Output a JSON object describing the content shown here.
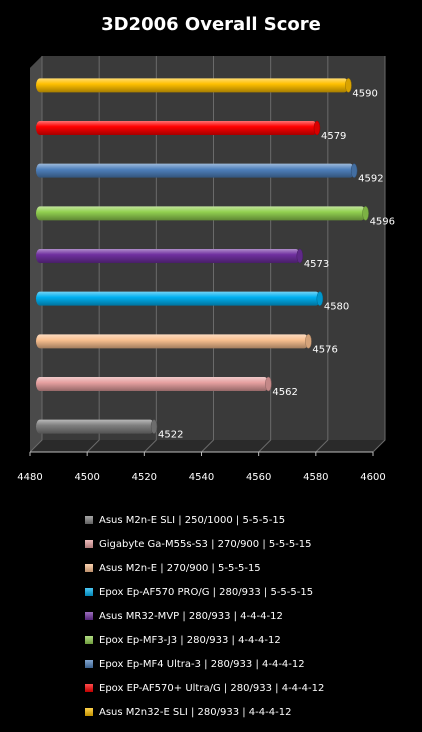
{
  "chart_data": {
    "type": "bar",
    "orientation": "horizontal",
    "title": "3D2006 Overall Score",
    "xlim": [
      4480,
      4600
    ],
    "x_ticks": [
      "4480",
      "4500",
      "4520",
      "4540",
      "4560",
      "4580",
      "4600"
    ],
    "grid": "vertical",
    "legend_position": "bottom",
    "series": [
      {
        "name": "Asus M2n32-E SLI  | 280/933 | 4-4-4-12",
        "value": 4590,
        "label": "4590",
        "color": "#ffc000"
      },
      {
        "name": "Epox EP-AF570+ Ultra/G | 280/933 | 4-4-4-12",
        "value": 4579,
        "label": "4579",
        "color": "#ff0000"
      },
      {
        "name": "Epox Ep-MF4 Ultra-3  | 280/933 | 4-4-4-12",
        "value": 4592,
        "label": "4592",
        "color": "#4f81bd"
      },
      {
        "name": "Epox Ep-MF3-J3  | 280/933 | 4-4-4-12",
        "value": 4596,
        "label": "4596",
        "color": "#92d050"
      },
      {
        "name": "Asus MR32-MVP  | 280/933 | 4-4-4-12",
        "value": 4573,
        "label": "4573",
        "color": "#7030a0"
      },
      {
        "name": "Epox Ep-AF570 PRO/G  | 280/933 | 5-5-5-15",
        "value": 4580,
        "label": "4580",
        "color": "#00b0f0"
      },
      {
        "name": "Asus M2n-E  | 270/900 | 5-5-5-15",
        "value": 4576,
        "label": "4576",
        "color": "#fac090"
      },
      {
        "name": "Gigabyte Ga-M55s-S3  | 270/900 | 5-5-5-15",
        "value": 4562,
        "label": "4562",
        "color": "#e6a0a0"
      },
      {
        "name": "Asus M2n-E SLI  | 250/1000 | 5-5-5-15",
        "value": 4522,
        "label": "4522",
        "color": "#808080"
      }
    ],
    "legend_order": [
      "Asus M2n-E SLI  | 250/1000 | 5-5-5-15",
      "Gigabyte Ga-M55s-S3  | 270/900 | 5-5-5-15",
      "Asus M2n-E  | 270/900 | 5-5-5-15",
      "Epox Ep-AF570 PRO/G  | 280/933 | 5-5-5-15",
      "Asus MR32-MVP  | 280/933 | 4-4-4-12",
      "Epox Ep-MF3-J3  | 280/933 | 4-4-4-12",
      "Epox Ep-MF4 Ultra-3  | 280/933 | 4-4-4-12",
      "Epox EP-AF570+ Ultra/G | 280/933 | 4-4-4-12",
      "Asus M2n32-E SLI  | 280/933 | 4-4-4-12"
    ]
  }
}
